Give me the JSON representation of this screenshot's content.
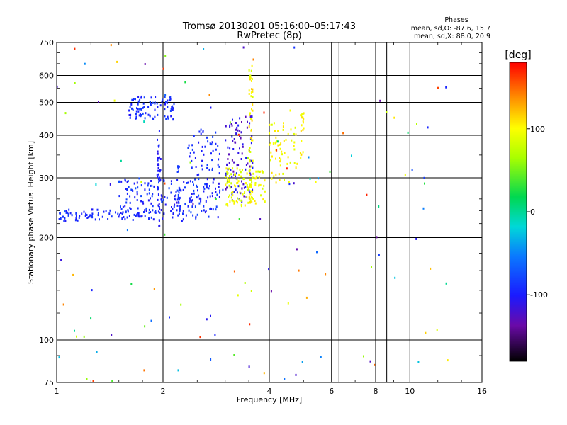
{
  "chart_data": {
    "type": "scatter",
    "title": "Tromsø 20130201 05:16:00–05:17:43",
    "subtitle": "RwPretec (8p)",
    "xlabel": "Frequency [MHz]",
    "ylabel": "Stationary phase Virtual Height [km]",
    "x_scale": "log",
    "y_scale": "log",
    "xlim": [
      1,
      16
    ],
    "ylim": [
      75,
      750
    ],
    "x_ticks": [
      1,
      2,
      4,
      6,
      8,
      10,
      16
    ],
    "x_tick_labels": [
      "1",
      "2",
      "4",
      "6",
      "8",
      "10",
      "16"
    ],
    "x_extra_gridlines": [
      6.3,
      8.6
    ],
    "y_ticks": [
      75,
      100,
      200,
      300,
      400,
      500,
      600,
      750
    ],
    "y_tick_labels": [
      "75",
      "100",
      "200",
      "300",
      "400",
      "500",
      "600",
      "750"
    ],
    "grid": true,
    "annotation": {
      "title": "Phases",
      "line1": "mean, sd,O: -87.6, 15.7",
      "line2": "mean, sd,X: 88.0, 20.9"
    },
    "colorbar": {
      "label": "[deg]",
      "min": -180,
      "max": 180,
      "ticks": [
        -100,
        0,
        100
      ],
      "tick_labels": [
        "-100",
        "0",
        "100"
      ]
    },
    "series": [
      {
        "mode": "band",
        "x0": 1.0,
        "x1": 2.3,
        "y0": 224,
        "y1": 242,
        "phase_range": [
          -105,
          -85
        ],
        "n": 90,
        "seed": 11
      },
      {
        "mode": "band",
        "x0": 1.5,
        "x1": 2.9,
        "y0": 228,
        "y1": 300,
        "phase_range": [
          -110,
          -75
        ],
        "n": 160,
        "seed": 12
      },
      {
        "mode": "band",
        "x0": 1.6,
        "x1": 2.15,
        "y0": 445,
        "y1": 520,
        "phase_range": [
          -105,
          -80
        ],
        "n": 90,
        "seed": 13
      },
      {
        "mode": "vertical",
        "x": 1.95,
        "y0": 215,
        "y1": 430,
        "phase_range": [
          -110,
          -90
        ],
        "n": 40,
        "seed": 14
      },
      {
        "mode": "band",
        "x0": 2.35,
        "x1": 2.9,
        "y0": 240,
        "y1": 420,
        "phase_range": [
          -105,
          -80
        ],
        "n": 80,
        "seed": 15
      },
      {
        "mode": "band",
        "x0": 3.0,
        "x1": 3.6,
        "y0": 250,
        "y1": 470,
        "phase_range": [
          -135,
          -95
        ],
        "n": 100,
        "seed": 16
      },
      {
        "mode": "band",
        "x0": 3.0,
        "x1": 3.9,
        "y0": 248,
        "y1": 320,
        "phase_range": [
          75,
          110
        ],
        "n": 110,
        "seed": 17
      },
      {
        "mode": "vertical",
        "x": 3.55,
        "y0": 250,
        "y1": 640,
        "phase_range": [
          80,
          120
        ],
        "n": 55,
        "seed": 18
      },
      {
        "mode": "band",
        "x0": 4.0,
        "x1": 4.8,
        "y0": 290,
        "y1": 440,
        "phase_range": [
          85,
          115
        ],
        "n": 60,
        "seed": 19
      },
      {
        "mode": "vertical",
        "x": 4.95,
        "y0": 340,
        "y1": 470,
        "phase_range": [
          90,
          115
        ],
        "n": 20,
        "seed": 20
      },
      {
        "mode": "vertical",
        "x": 2.22,
        "y0": 215,
        "y1": 330,
        "phase_range": [
          -95,
          -80
        ],
        "n": 25,
        "seed": 21
      },
      {
        "mode": "scatter",
        "x0": 1.0,
        "x1": 13.5,
        "y0": 75,
        "y1": 750,
        "phase_range": [
          -140,
          170
        ],
        "n": 130,
        "seed": 22
      }
    ]
  }
}
